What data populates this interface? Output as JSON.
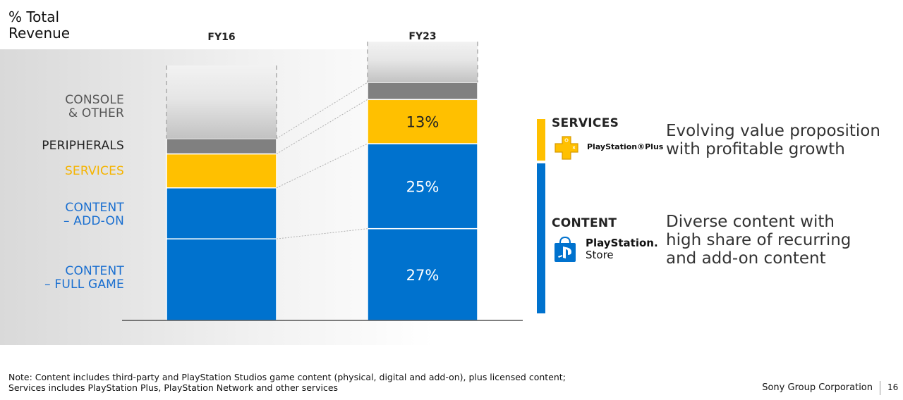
{
  "chart_data": {
    "type": "bar",
    "stacked": true,
    "y_title": [
      "% Total",
      "Revenue"
    ],
    "categories": [
      "FY16",
      "FY23"
    ],
    "segments_bottom_to_top": [
      {
        "key": "full_game",
        "label": [
          "CONTENT",
          "– FULL GAME"
        ],
        "color": "#0072ce",
        "values": [
          24,
          27
        ],
        "value_labels": [
          "",
          "27%"
        ]
      },
      {
        "key": "add_on",
        "label": [
          "CONTENT",
          "– ADD-ON"
        ],
        "color": "#0072ce",
        "values": [
          15,
          25
        ],
        "value_labels": [
          "",
          "25%"
        ]
      },
      {
        "key": "services",
        "label": [
          "SERVICES"
        ],
        "color": "#ffc000",
        "values": [
          10,
          13
        ],
        "value_labels": [
          "",
          "13%"
        ]
      },
      {
        "key": "peripherals",
        "label": [
          "PERIPHERALS"
        ],
        "color": "#808080",
        "values": [
          4.5,
          5
        ],
        "value_labels": [
          "",
          ""
        ]
      },
      {
        "key": "console",
        "label": [
          "CONSOLE",
          "& OTHER"
        ],
        "color": "#d8d8d8",
        "values": [
          21.5,
          12
        ],
        "value_labels": [
          "",
          ""
        ]
      }
    ],
    "ylim": [
      0,
      75
    ]
  },
  "sidebar": {
    "services": {
      "title": "SERVICES",
      "color": "#f5b400",
      "logo_text": "PlayStation®Plus",
      "description": [
        "Evolving value proposition",
        "with profitable growth"
      ]
    },
    "content": {
      "title": "CONTENT",
      "color": "#1a6fd0",
      "logo_text": [
        "PlayStation.",
        "Store"
      ],
      "description": [
        "Diverse content with",
        "high share of recurring",
        "and add-on content"
      ]
    }
  },
  "note": [
    "Note: Content includes third-party and PlayStation Studios game content (physical, digital and add-on), plus licensed content;",
    "Services includes PlayStation Plus, PlayStation Network and other services"
  ],
  "footer": {
    "company": "Sony Group Corporation",
    "page": "16"
  }
}
